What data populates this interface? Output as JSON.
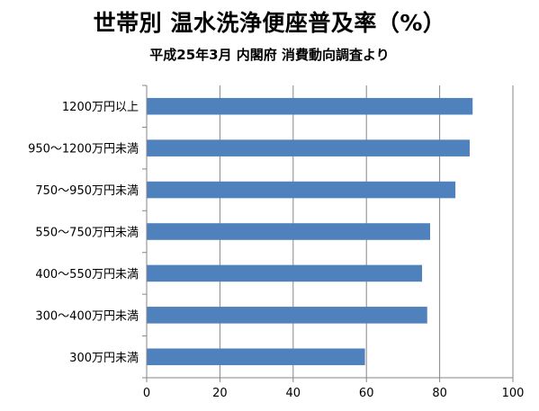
{
  "chart_data": {
    "type": "bar",
    "orientation": "horizontal",
    "title": "世帯別 温水洗浄便座普及率（%）",
    "subtitle": "平成25年3月 内閣府 消費動向調査より",
    "categories": [
      "1200万円以上",
      "950～1200万円未満",
      "750～950万円未満",
      "550～750万円未満",
      "400～550万円未満",
      "300～400万円未満",
      "300万円未満"
    ],
    "values": [
      89.0,
      88.2,
      84.3,
      77.4,
      75.2,
      76.6,
      59.6
    ],
    "xlim": [
      0,
      100
    ],
    "xticks": [
      0,
      20,
      40,
      60,
      80,
      100
    ],
    "grid": "vertical",
    "legend": "none",
    "bar_color": "#4F81BD"
  }
}
